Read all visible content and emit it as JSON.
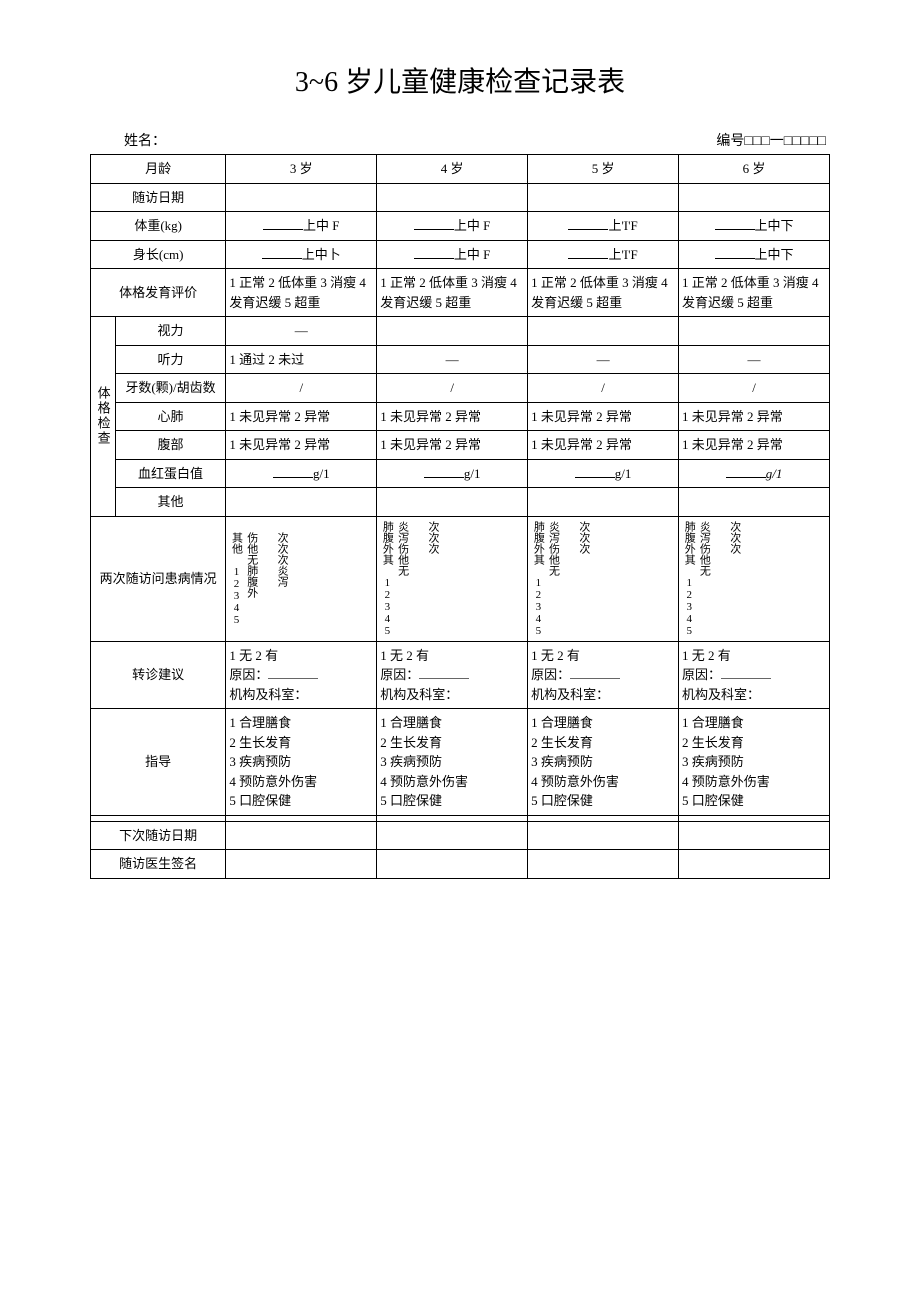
{
  "title": "3~6 岁儿童健康检查记录表",
  "header": {
    "name_label": "姓名：",
    "id_label": "编号□□□一□□□□□"
  },
  "rows": {
    "age_label": "月龄",
    "ages": [
      "3 岁",
      "4 岁",
      "5 岁",
      "6 岁"
    ],
    "visit_date": "随访日期",
    "weight": "体重(kg)",
    "weight_vals": [
      "上中 F",
      "上中 F",
      "上'I'F",
      "上中下"
    ],
    "height": "身长(cm)",
    "height_vals": [
      "上中卜",
      "上中 F",
      "上'I'F",
      "上中下"
    ],
    "physique": "体格发育评价",
    "physique_vals": [
      "1 正常 2 低体重 3 消瘦 4 发育迟缓 5 超重",
      "1 正常 2 低体重 3 消瘦 4 发育迟缓 5 超重",
      "1 正常 2 低体重 3 消瘦 4 发育迟缓 5 超重",
      "1 正常 2 低体重 3 消瘦 4 发育迟缓 5 超重"
    ],
    "exam_group": "体格检查",
    "vision": "视力",
    "vision_vals": [
      "—",
      "",
      "",
      ""
    ],
    "hearing": "听力",
    "hearing_vals": [
      "1 通过 2 未过",
      "—",
      "—",
      "—"
    ],
    "teeth": "牙数(颗)/胡齿数",
    "teeth_vals": [
      "/",
      "/",
      "/",
      "/"
    ],
    "heart": "心肺",
    "heart_vals": [
      "1 未见异常 2 异常",
      "1 未见异常 2 异常",
      "1 未见异常 2 异常",
      "1 未见异常 2 异常"
    ],
    "abdomen": "腹部",
    "abdomen_vals": [
      "1 未见异常 2 异常",
      "1 未见异常 2 异常",
      "1 未见异常 2 异常",
      "1 未见异常 2 异常"
    ],
    "hemoglobin": "血红蛋白值",
    "hemoglobin_vals": [
      "g/1",
      "g/1",
      "g/1",
      "g/1"
    ],
    "other": "其他",
    "illness": "两次随访问患病情况",
    "illness_col1": {
      "a": "其他",
      "b": "12345",
      "c": "伤他无肺腹外",
      "d": "次次次炎泻"
    },
    "illness_rest": {
      "a": "肺腹外其",
      "b": "炎泻伤他无",
      "c": "12345",
      "d": "次次次"
    },
    "referral": "转诊建议",
    "referral_l1": "1 无 2 有",
    "referral_l2": "原因：",
    "referral_l3": "机构及科室：",
    "guidance": "指导",
    "guidance_lines": [
      "1 合理膳食",
      "2 生长发育",
      "3 疾病预防",
      "4 预防意外伤害",
      "5 口腔保健"
    ],
    "next_date": "下次随访日期",
    "doctor": "随访医生签名"
  }
}
